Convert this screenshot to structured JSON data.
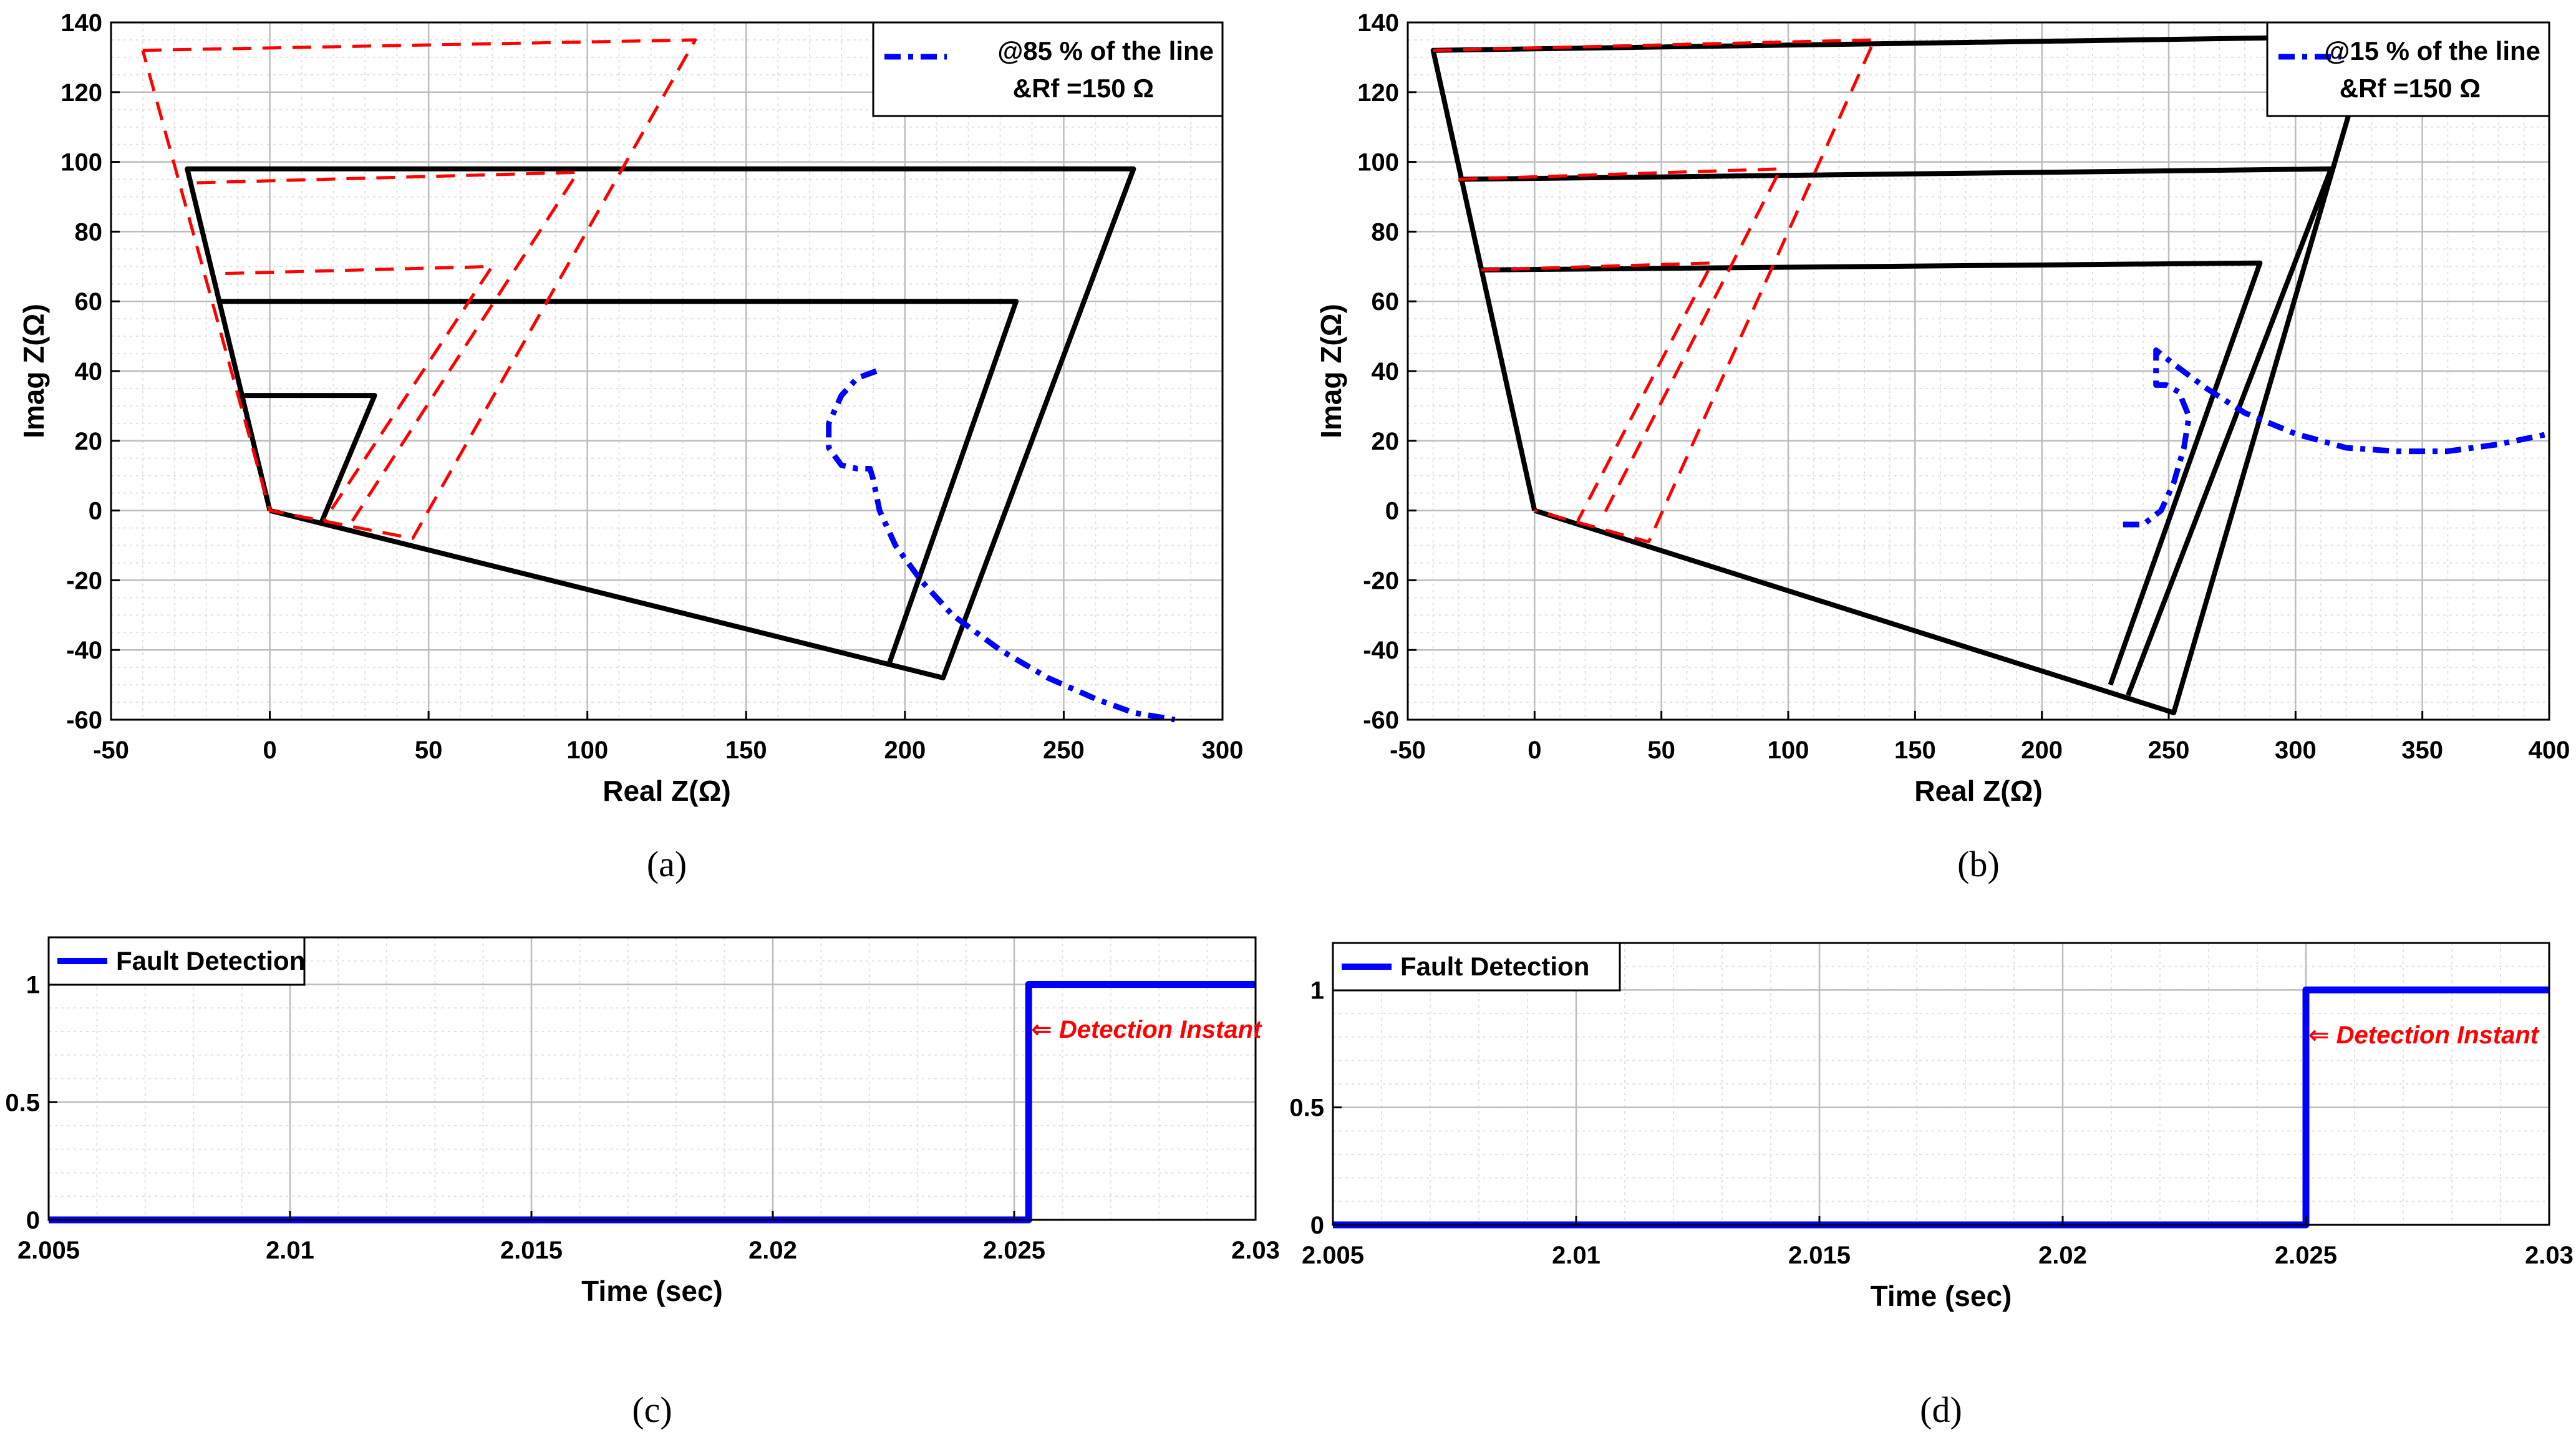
{
  "colors": {
    "black": "#000000",
    "red": "#ff0000",
    "blue": "#0000ff",
    "grid": "#bdbdbd",
    "minor_grid": "#e2e2e2"
  },
  "chart_data": [
    {
      "id": "a",
      "type": "line",
      "caption": "(a)",
      "xlabel": "Real Z(Ω)",
      "ylabel": "Imag Z(Ω)",
      "xlim": [
        -50,
        300
      ],
      "ylim": [
        -60,
        140
      ],
      "xticks": [
        -50,
        0,
        50,
        100,
        150,
        200,
        250,
        300
      ],
      "yticks": [
        -60,
        -40,
        -20,
        0,
        20,
        40,
        60,
        80,
        100,
        120,
        140
      ],
      "xminor": 10,
      "yminor": 5,
      "legend": {
        "line1": "@85 % of the line",
        "line2": "&Rf =150 Ω",
        "position": "top-right"
      },
      "series": [
        {
          "name": "zone-1-quadrilateral",
          "color": "#000000",
          "style": "solid",
          "points": [
            [
              0,
              0
            ],
            [
              -26,
              98
            ],
            [
              272,
              98
            ],
            [
              212,
              -48
            ],
            [
              0,
              0
            ]
          ]
        },
        {
          "name": "zone-2-quadrilateral",
          "color": "#000000",
          "style": "solid",
          "points": [
            [
              -16,
              60
            ],
            [
              235,
              60
            ],
            [
              195,
              -44
            ]
          ]
        },
        {
          "name": "zone-3-quadrilateral",
          "color": "#000000",
          "style": "solid",
          "points": [
            [
              -8,
              33
            ],
            [
              33,
              33
            ],
            [
              16,
              -4
            ]
          ]
        },
        {
          "name": "red-outer-polygon",
          "color": "#ff0000",
          "style": "dashed",
          "points": [
            [
              -40,
              132
            ],
            [
              134,
              135
            ],
            [
              45,
              -8
            ],
            [
              0,
              0
            ],
            [
              -40,
              132
            ]
          ]
        },
        {
          "name": "red-middle-reach",
          "color": "#ff0000",
          "style": "dashed",
          "points": [
            [
              -23,
              94
            ],
            [
              97,
              97
            ],
            [
              26,
              -3
            ]
          ]
        },
        {
          "name": "red-inner-reach",
          "color": "#ff0000",
          "style": "dashed",
          "points": [
            [
              -14,
              68
            ],
            [
              70,
              70
            ],
            [
              17,
              -3
            ]
          ]
        },
        {
          "name": "impedance-trajectory",
          "color": "#0000ff",
          "style": "dashdot",
          "points": [
            [
              191,
              40
            ],
            [
              185,
              38
            ],
            [
              180,
              33
            ],
            [
              176,
              25
            ],
            [
              176,
              18
            ],
            [
              180,
              13
            ],
            [
              185,
              12
            ],
            [
              189,
              12
            ],
            [
              190,
              9
            ],
            [
              192,
              0
            ],
            [
              197,
              -10
            ],
            [
              205,
              -20
            ],
            [
              215,
              -30
            ],
            [
              230,
              -40
            ],
            [
              245,
              -48
            ],
            [
              260,
              -54
            ],
            [
              272,
              -58
            ],
            [
              285,
              -60
            ]
          ]
        }
      ]
    },
    {
      "id": "b",
      "type": "line",
      "caption": "(b)",
      "xlabel": "Real Z(Ω)",
      "ylabel": "Imag Z(Ω)",
      "xlim": [
        -50,
        400
      ],
      "ylim": [
        -60,
        140
      ],
      "xticks": [
        -50,
        0,
        50,
        100,
        150,
        200,
        250,
        300,
        350,
        400
      ],
      "yticks": [
        -60,
        -40,
        -20,
        0,
        20,
        40,
        60,
        80,
        100,
        120,
        140
      ],
      "xminor": 10,
      "yminor": 5,
      "legend": {
        "line1": "@15 % of the line",
        "line2": "&Rf =150 Ω",
        "position": "top-right"
      },
      "series": [
        {
          "name": "zone-outer-quadrilateral",
          "color": "#000000",
          "style": "solid",
          "points": [
            [
              0,
              0
            ],
            [
              -40,
              132
            ],
            [
              330,
              136
            ],
            [
              252,
              -58
            ],
            [
              0,
              0
            ]
          ]
        },
        {
          "name": "zone-middle-quadrilateral",
          "color": "#000000",
          "style": "solid",
          "points": [
            [
              -30,
              95
            ],
            [
              314,
              98
            ],
            [
              234,
              -53
            ]
          ]
        },
        {
          "name": "zone-inner-quadrilateral",
          "color": "#000000",
          "style": "solid",
          "points": [
            [
              -21,
              69
            ],
            [
              286,
              71
            ],
            [
              227,
              -50
            ]
          ]
        },
        {
          "name": "red-outer-polygon",
          "color": "#ff0000",
          "style": "dashed",
          "points": [
            [
              -40,
              132
            ],
            [
              134,
              135
            ],
            [
              45,
              -9
            ],
            [
              0,
              0
            ]
          ]
        },
        {
          "name": "red-middle-reach",
          "color": "#ff0000",
          "style": "dashed",
          "points": [
            [
              -30,
              95
            ],
            [
              97,
              98
            ],
            [
              26,
              -3
            ]
          ]
        },
        {
          "name": "red-inner-reach",
          "color": "#ff0000",
          "style": "dashed",
          "points": [
            [
              -21,
              69
            ],
            [
              70,
              71
            ],
            [
              17,
              -3
            ]
          ]
        },
        {
          "name": "impedance-trajectory",
          "color": "#0000ff",
          "style": "dashdot",
          "points": [
            [
              232,
              -4
            ],
            [
              240,
              -4
            ],
            [
              247,
              0
            ],
            [
              252,
              8
            ],
            [
              256,
              18
            ],
            [
              258,
              27
            ],
            [
              254,
              34
            ],
            [
              249,
              36
            ],
            [
              245,
              36
            ],
            [
              245,
              46
            ],
            [
              252,
              42
            ],
            [
              265,
              35
            ],
            [
              280,
              28
            ],
            [
              300,
              22
            ],
            [
              320,
              18
            ],
            [
              340,
              17
            ],
            [
              360,
              17
            ],
            [
              380,
              19
            ],
            [
              400,
              22
            ]
          ]
        }
      ]
    },
    {
      "id": "c",
      "type": "line",
      "caption": "(c)",
      "xlabel": "Time (sec)",
      "ylabel": "",
      "xlim": [
        2.005,
        2.03
      ],
      "ylim": [
        0,
        1.2
      ],
      "xticks": [
        2.005,
        2.01,
        2.015,
        2.02,
        2.025,
        2.03
      ],
      "xticklabels": [
        "2.005",
        "2.01",
        "2.015",
        "2.02",
        "2.025",
        "2.03"
      ],
      "yticks": [
        0,
        0.5,
        1
      ],
      "yticklabels": [
        "0",
        "0.5",
        "1"
      ],
      "xminor": 0.001,
      "yminor": 0.1,
      "legend": {
        "line1": "Fault Detection",
        "position": "top-left"
      },
      "annotation": {
        "text": "⇐ Detection Instant",
        "x": 2.0253,
        "y": 0.81
      },
      "series": [
        {
          "name": "fault-detection",
          "color": "#0000ff",
          "style": "solid",
          "points": [
            [
              2.005,
              0
            ],
            [
              2.0253,
              0
            ],
            [
              2.0253,
              1
            ],
            [
              2.03,
              1
            ]
          ]
        }
      ]
    },
    {
      "id": "d",
      "type": "line",
      "caption": "(d)",
      "xlabel": "Time (sec)",
      "ylabel": "",
      "xlim": [
        2.005,
        2.03
      ],
      "ylim": [
        0,
        1.2
      ],
      "xticks": [
        2.005,
        2.01,
        2.015,
        2.02,
        2.025,
        2.03
      ],
      "xticklabels": [
        "2.005",
        "2.01",
        "2.015",
        "2.02",
        "2.025",
        "2.03"
      ],
      "yticks": [
        0,
        0.5,
        1
      ],
      "yticklabels": [
        "0",
        "0.5",
        "1"
      ],
      "xminor": 0.001,
      "yminor": 0.1,
      "legend": {
        "line1": "Fault Detection",
        "position": "top-left"
      },
      "annotation": {
        "text": "⇐ Detection Instant",
        "x": 2.025,
        "y": 0.81
      },
      "series": [
        {
          "name": "fault-detection",
          "color": "#0000ff",
          "style": "solid",
          "points": [
            [
              2.005,
              0
            ],
            [
              2.025,
              0
            ],
            [
              2.025,
              1
            ],
            [
              2.03,
              1
            ]
          ]
        }
      ]
    }
  ]
}
